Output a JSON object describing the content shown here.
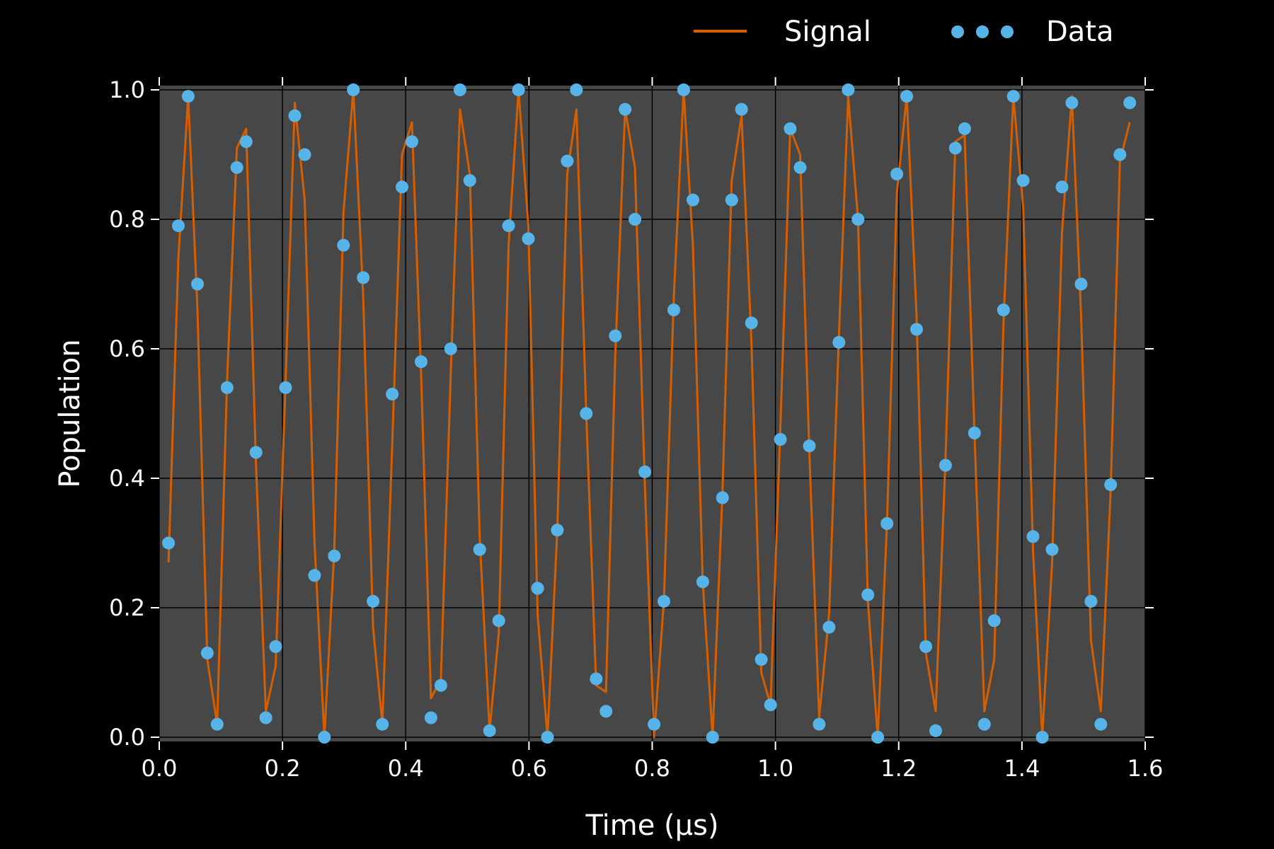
{
  "chart_data": {
    "type": "line",
    "xlabel": "Time (μs)",
    "ylabel": "Population",
    "xlim": [
      0.0,
      1.6
    ],
    "ylim": [
      0.0,
      1.0
    ],
    "xticks": [
      "0.0",
      "0.2",
      "0.4",
      "0.6",
      "0.8",
      "1.0",
      "1.2",
      "1.4",
      "1.6"
    ],
    "yticks": [
      "0.0",
      "0.2",
      "0.4",
      "0.6",
      "0.8",
      "1.0"
    ],
    "grid": true,
    "legend": "top, outside plot area",
    "colors": {
      "background": "#000000",
      "plot_background": "#474747",
      "grid": "#000000",
      "signal": "#d55e00",
      "data": "#56b4e9"
    },
    "series": [
      {
        "name": "Signal",
        "kind": "line",
        "x": [
          0.015,
          0.031,
          0.047,
          0.062,
          0.078,
          0.094,
          0.11,
          0.126,
          0.141,
          0.157,
          0.173,
          0.189,
          0.205,
          0.22,
          0.236,
          0.252,
          0.268,
          0.284,
          0.299,
          0.315,
          0.331,
          0.347,
          0.362,
          0.378,
          0.394,
          0.41,
          0.425,
          0.441,
          0.457,
          0.473,
          0.488,
          0.504,
          0.52,
          0.536,
          0.551,
          0.567,
          0.583,
          0.599,
          0.614,
          0.63,
          0.646,
          0.662,
          0.677,
          0.693,
          0.709,
          0.725,
          0.74,
          0.756,
          0.772,
          0.788,
          0.803,
          0.819,
          0.835,
          0.851,
          0.866,
          0.882,
          0.898,
          0.914,
          0.929,
          0.945,
          0.961,
          0.977,
          0.992,
          1.008,
          1.024,
          1.04,
          1.055,
          1.071,
          1.087,
          1.103,
          1.118,
          1.134,
          1.15,
          1.166,
          1.181,
          1.197,
          1.213,
          1.229,
          1.244,
          1.26,
          1.276,
          1.292,
          1.307,
          1.323,
          1.339,
          1.355,
          1.37,
          1.386,
          1.402,
          1.418,
          1.433,
          1.449,
          1.465,
          1.481,
          1.496,
          1.512,
          1.528,
          1.544,
          1.559,
          1.575
        ],
        "y": [
          0.27,
          0.74,
          0.99,
          0.66,
          0.12,
          0.02,
          0.55,
          0.91,
          0.94,
          0.42,
          0.04,
          0.11,
          0.55,
          0.98,
          0.83,
          0.3,
          0.0,
          0.29,
          0.81,
          1.0,
          0.68,
          0.17,
          0.02,
          0.45,
          0.9,
          0.95,
          0.56,
          0.06,
          0.09,
          0.56,
          0.97,
          0.87,
          0.31,
          0.01,
          0.16,
          0.76,
          1.0,
          0.79,
          0.19,
          0.0,
          0.32,
          0.87,
          0.97,
          0.5,
          0.08,
          0.07,
          0.59,
          0.97,
          0.88,
          0.39,
          0.0,
          0.21,
          0.68,
          1.0,
          0.76,
          0.24,
          0.0,
          0.38,
          0.86,
          0.96,
          0.61,
          0.1,
          0.05,
          0.48,
          0.94,
          0.9,
          0.44,
          0.03,
          0.19,
          0.62,
          0.99,
          0.8,
          0.21,
          0.0,
          0.33,
          0.84,
          0.99,
          0.65,
          0.13,
          0.04,
          0.43,
          0.92,
          0.93,
          0.47,
          0.04,
          0.12,
          0.64,
          0.99,
          0.82,
          0.29,
          0.0,
          0.27,
          0.78,
          0.99,
          0.65,
          0.15,
          0.04,
          0.38,
          0.89,
          0.95
        ]
      },
      {
        "name": "Data",
        "kind": "scatter",
        "x": [
          0.015,
          0.031,
          0.047,
          0.062,
          0.078,
          0.094,
          0.11,
          0.126,
          0.141,
          0.157,
          0.173,
          0.189,
          0.205,
          0.22,
          0.236,
          0.252,
          0.268,
          0.284,
          0.299,
          0.315,
          0.331,
          0.347,
          0.362,
          0.378,
          0.394,
          0.41,
          0.425,
          0.441,
          0.457,
          0.473,
          0.488,
          0.504,
          0.52,
          0.536,
          0.551,
          0.567,
          0.583,
          0.599,
          0.614,
          0.63,
          0.646,
          0.662,
          0.677,
          0.693,
          0.709,
          0.725,
          0.74,
          0.756,
          0.772,
          0.788,
          0.803,
          0.819,
          0.835,
          0.851,
          0.866,
          0.882,
          0.898,
          0.914,
          0.929,
          0.945,
          0.961,
          0.977,
          0.992,
          1.008,
          1.024,
          1.04,
          1.055,
          1.071,
          1.087,
          1.103,
          1.118,
          1.134,
          1.15,
          1.166,
          1.181,
          1.197,
          1.213,
          1.229,
          1.244,
          1.26,
          1.276,
          1.292,
          1.307,
          1.323,
          1.339,
          1.355,
          1.37,
          1.386,
          1.402,
          1.418,
          1.433,
          1.449,
          1.465,
          1.481,
          1.496,
          1.512,
          1.528,
          1.544,
          1.559,
          1.575
        ],
        "y": [
          0.3,
          0.79,
          0.99,
          0.7,
          0.13,
          0.02,
          0.54,
          0.88,
          0.92,
          0.44,
          0.03,
          0.14,
          0.54,
          0.96,
          0.9,
          0.25,
          0.0,
          0.28,
          0.76,
          1.0,
          0.71,
          0.21,
          0.02,
          0.53,
          0.85,
          0.92,
          0.58,
          0.03,
          0.08,
          0.6,
          1.0,
          0.86,
          0.29,
          0.01,
          0.18,
          0.79,
          1.0,
          0.77,
          0.23,
          0.0,
          0.32,
          0.89,
          1.0,
          0.5,
          0.09,
          0.04,
          0.62,
          0.97,
          0.8,
          0.41,
          0.02,
          0.21,
          0.66,
          1.0,
          0.83,
          0.24,
          0.0,
          0.37,
          0.83,
          0.97,
          0.64,
          0.12,
          0.05,
          0.46,
          0.94,
          0.88,
          0.45,
          0.02,
          0.17,
          0.61,
          1.0,
          0.8,
          0.22,
          0.0,
          0.33,
          0.87,
          0.99,
          0.63,
          0.14,
          0.01,
          0.42,
          0.91,
          0.94,
          0.47,
          0.02,
          0.18,
          0.66,
          0.99,
          0.86,
          0.31,
          0.0,
          0.29,
          0.85,
          0.98,
          0.7,
          0.21,
          0.02,
          0.39,
          0.9,
          0.98
        ]
      }
    ]
  }
}
